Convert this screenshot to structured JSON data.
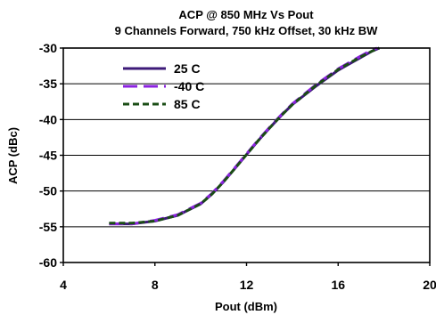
{
  "chart_data": {
    "type": "line",
    "title_lines": [
      "ACP @ 850 MHz Vs Pout",
      "9 Channels Forward, 750 kHz Offset, 30 kHz BW"
    ],
    "xlabel": "Pout (dBm)",
    "ylabel": "ACP (dBc)",
    "xlim": [
      4,
      20
    ],
    "ylim": [
      -60,
      -30
    ],
    "xticks": [
      "4",
      "8",
      "12",
      "16",
      "20"
    ],
    "yticks": [
      "-30",
      "-35",
      "-40",
      "-45",
      "-50",
      "-55",
      "-60"
    ],
    "grid": "horizontal",
    "legend_position": "top-left",
    "series": [
      {
        "name": "25 C",
        "color": "#3d1a78",
        "dash": "solid",
        "x": [
          6,
          7,
          8,
          9,
          10,
          10.5,
          11,
          11.5,
          12,
          12.5,
          13,
          13.5,
          14,
          15,
          16,
          17,
          17.5,
          17.8
        ],
        "y": [
          -54.6,
          -54.6,
          -54.2,
          -53.4,
          -51.8,
          -50.4,
          -48.7,
          -46.8,
          -44.9,
          -43.0,
          -41.2,
          -39.5,
          -37.9,
          -35.4,
          -33.1,
          -31.3,
          -30.4,
          -30.0
        ]
      },
      {
        "name": "-40 C",
        "color": "#8b22e0",
        "dash": "long",
        "x": [
          6,
          7,
          8,
          9,
          10,
          10.5,
          11,
          11.5,
          12,
          12.5,
          13,
          13.5,
          14,
          15,
          16,
          17,
          17.5,
          17.7
        ],
        "y": [
          -54.6,
          -54.6,
          -54.1,
          -53.3,
          -51.7,
          -50.3,
          -48.6,
          -46.7,
          -44.8,
          -42.9,
          -41.1,
          -39.4,
          -37.8,
          -35.2,
          -32.9,
          -31.1,
          -30.2,
          -30.0
        ]
      },
      {
        "name": "85 C",
        "color": "#1a4d14",
        "dash": "short",
        "x": [
          6,
          7,
          8,
          9,
          10,
          10.5,
          11,
          11.5,
          12,
          12.5,
          13,
          13.5,
          14,
          15,
          16,
          17,
          17.5,
          17.8
        ],
        "y": [
          -54.5,
          -54.5,
          -54.2,
          -53.4,
          -51.8,
          -50.4,
          -48.7,
          -46.8,
          -44.9,
          -43.0,
          -41.2,
          -39.5,
          -37.9,
          -35.3,
          -33.0,
          -31.2,
          -30.4,
          -30.0
        ]
      }
    ]
  }
}
